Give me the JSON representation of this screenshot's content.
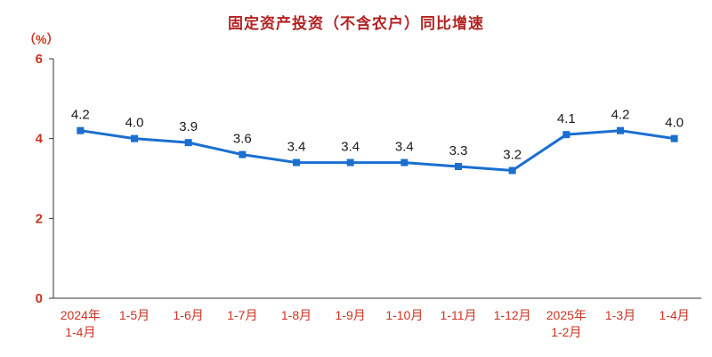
{
  "chart": {
    "title": "固定资产投资（不含农户）同比增速",
    "unit_label": "（%）"
  },
  "chart_data": {
    "type": "line",
    "title": "固定资产投资（不含农户）同比增速",
    "ylabel": "（%）",
    "xlabel": "",
    "categories": [
      [
        "2024年",
        "1-4月"
      ],
      [
        "1-5月"
      ],
      [
        "1-6月"
      ],
      [
        "1-7月"
      ],
      [
        "1-8月"
      ],
      [
        "1-9月"
      ],
      [
        "1-10月"
      ],
      [
        "1-11月"
      ],
      [
        "1-12月"
      ],
      [
        "2025年",
        "1-2月"
      ],
      [
        "1-3月"
      ],
      [
        "1-4月"
      ]
    ],
    "series": [
      {
        "name": "固定资产投资（不含农户）同比增速",
        "values": [
          4.2,
          4.0,
          3.9,
          3.6,
          3.4,
          3.4,
          3.4,
          3.3,
          3.2,
          4.1,
          4.2,
          4.0
        ]
      }
    ],
    "data_labels": [
      "4.2",
      "4.0",
      "3.9",
      "3.6",
      "3.4",
      "3.4",
      "3.4",
      "3.3",
      "3.2",
      "4.1",
      "4.2",
      "4.0"
    ],
    "ylim": [
      0,
      6
    ],
    "yticks": [
      0,
      2,
      4,
      6
    ],
    "grid": false,
    "legend": "none",
    "marker": "square",
    "colors": {
      "line": "#1a6fd0",
      "marker": "#1a6fd0",
      "title": "#b22222",
      "axis_text": "#cc3322",
      "data_label": "#1a1a1a",
      "axis_line": "#333333"
    }
  }
}
